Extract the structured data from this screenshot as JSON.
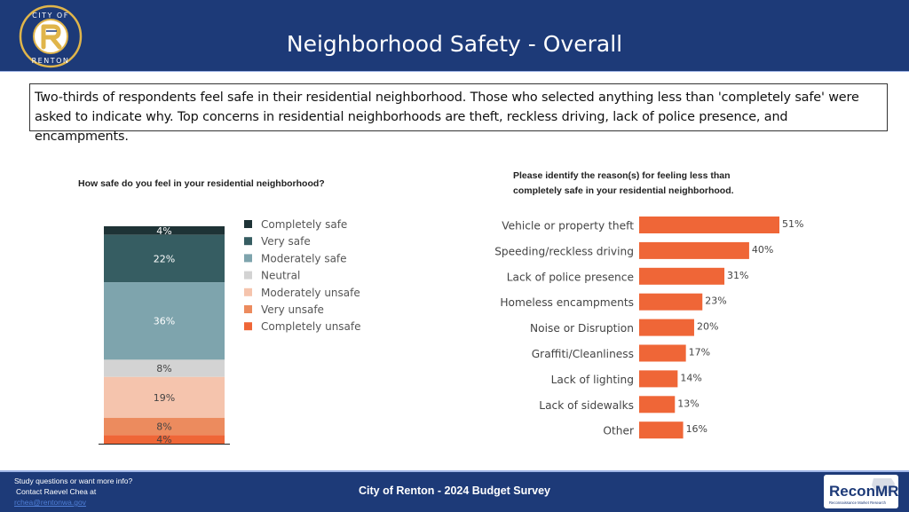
{
  "header": {
    "title": "Neighborhood Safety - Overall",
    "logo_text_top": "CITY OF",
    "logo_text_bottom": "RENTON"
  },
  "summary": "Two-thirds of respondents feel safe in their residential neighborhood. Those who selected anything less than 'completely safe' were asked to indicate why. Top concerns in residential neighborhoods are theft, reckless driving, lack of police presence, and encampments.",
  "footer": {
    "contact_line1": "Study questions or want more info?",
    "contact_line2": "Contact Raevel Chea at",
    "contact_email": "rchea@rentonwa.gov",
    "center_text": "City of Renton - 2024 Budget Survey",
    "brand": "ReconMR",
    "brand_tagline": "Reconnaissance Market Research"
  },
  "colors": {
    "header_bg": "#1d3a78",
    "bar_orange": "#ef6637"
  },
  "chart_data": [
    {
      "type": "bar",
      "orientation": "stacked-vertical",
      "title": "How safe do you feel in your residential neighborhood?",
      "series": [
        {
          "name": "Completely safe",
          "value": 4,
          "label": "4%",
          "color": "#1e3336"
        },
        {
          "name": "Very safe",
          "value": 22,
          "label": "22%",
          "color": "#365d62"
        },
        {
          "name": "Moderately safe",
          "value": 36,
          "label": "36%",
          "color": "#7ea4ad"
        },
        {
          "name": "Neutral",
          "value": 8,
          "label": "8%",
          "color": "#d3d3d3"
        },
        {
          "name": "Moderately unsafe",
          "value": 19,
          "label": "19%",
          "color": "#f5c4ad"
        },
        {
          "name": "Very unsafe",
          "value": 8,
          "label": "8%",
          "color": "#ec8b5e"
        },
        {
          "name": "Completely unsafe",
          "value": 4,
          "label": "4%",
          "color": "#ef6637"
        }
      ],
      "legend": "right"
    },
    {
      "type": "bar",
      "orientation": "horizontal",
      "title": "Please identify the reason(s) for feeling less than completely safe in your residential neighborhood.",
      "categories": [
        "Vehicle or property theft",
        "Speeding/reckless driving",
        "Lack of police presence",
        "Homeless encampments",
        "Noise or Disruption",
        "Graffiti/Cleanliness",
        "Lack of lighting",
        "Lack of sidewalks",
        "Other"
      ],
      "values": [
        51,
        40,
        31,
        23,
        20,
        17,
        14,
        13,
        16
      ],
      "labels": [
        "51%",
        "40%",
        "31%",
        "23%",
        "20%",
        "17%",
        "14%",
        "13%",
        "16%"
      ],
      "xlim": [
        0,
        60
      ]
    }
  ]
}
